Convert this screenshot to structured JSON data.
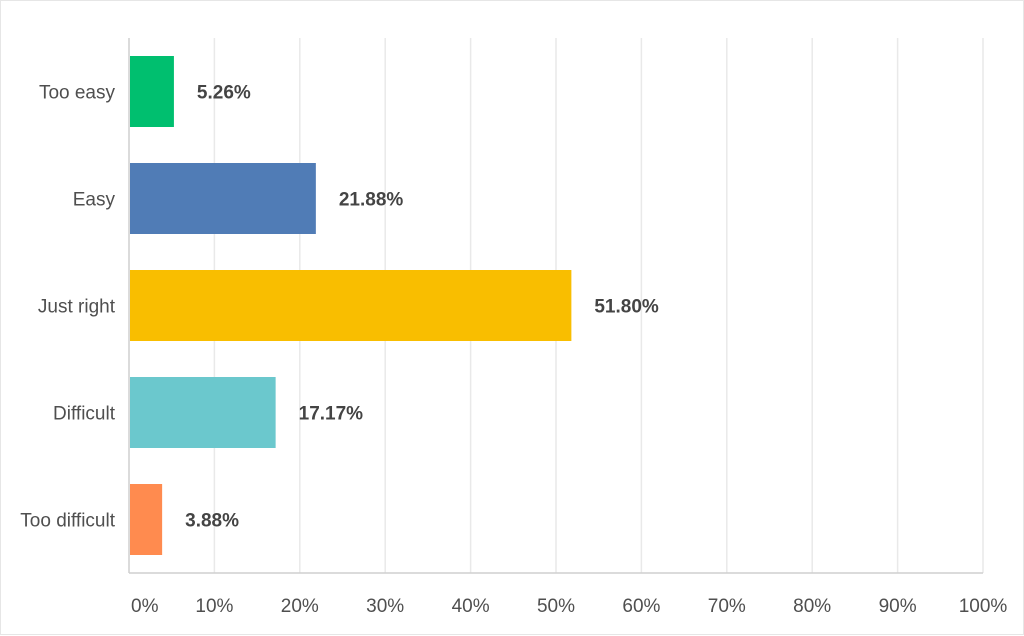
{
  "chart_data": {
    "type": "bar",
    "orientation": "horizontal",
    "categories": [
      "Too easy",
      "Easy",
      "Just right",
      "Difficult",
      "Too difficult"
    ],
    "values": [
      5.26,
      21.88,
      51.8,
      17.17,
      3.88
    ],
    "value_labels": [
      "5.26%",
      "21.88%",
      "51.80%",
      "17.17%",
      "3.88%"
    ],
    "colors": [
      "#00bf6f",
      "#507cb6",
      "#f9be00",
      "#6bc8cd",
      "#ff8b4f"
    ],
    "xlim": [
      0,
      100
    ],
    "x_ticks": [
      0,
      10,
      20,
      30,
      40,
      50,
      60,
      70,
      80,
      90,
      100
    ],
    "x_tick_labels": [
      "0%",
      "10%",
      "20%",
      "30%",
      "40%",
      "50%",
      "60%",
      "70%",
      "80%",
      "90%",
      "100%"
    ],
    "grid": true,
    "title": "",
    "xlabel": "",
    "ylabel": ""
  }
}
